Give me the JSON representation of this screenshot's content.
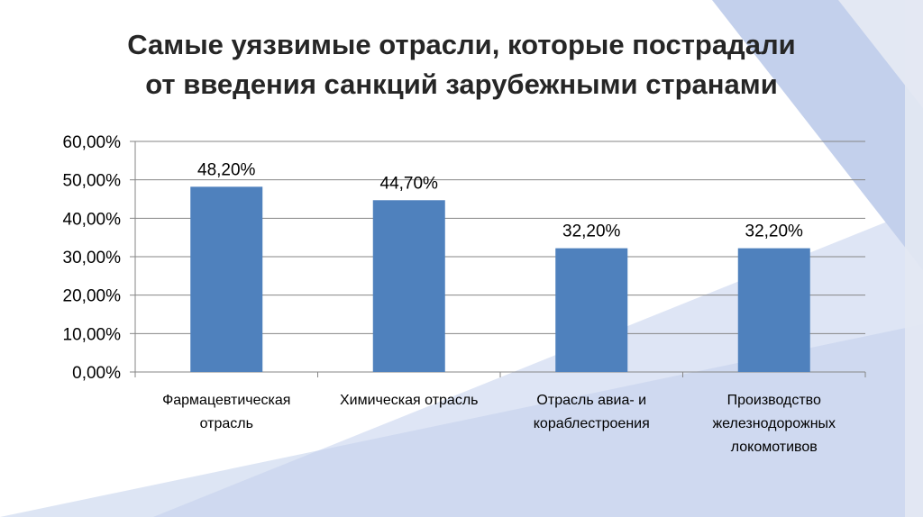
{
  "slide": {
    "title_line1": "Самые уязвимые отрасли, которые пострадали",
    "title_line2": "от введения санкций зарубежными странами"
  },
  "colors": {
    "bar": "#4f81bd",
    "decor_light": "#dde5f4",
    "decor_mid": "#c3d0ec",
    "decor_edge": "#e3e8f3"
  },
  "chart_data": {
    "type": "bar",
    "categories": [
      [
        "Фармацевтическая",
        "отрасль"
      ],
      [
        "Химическая отрасль"
      ],
      [
        "Отрасль авиа- и",
        "кораблестроения"
      ],
      [
        "Производство",
        "железнодорожных",
        "локомотивов"
      ]
    ],
    "values": [
      48.2,
      44.7,
      32.2,
      32.2
    ],
    "data_labels": [
      "48,20%",
      "44,70%",
      "32,20%",
      "32,20%"
    ],
    "y_ticks": [
      "0,00%",
      "10,00%",
      "20,00%",
      "30,00%",
      "40,00%",
      "50,00%",
      "60,00%"
    ],
    "ylim": [
      0,
      60
    ],
    "y_step": 10,
    "grid": true,
    "legend": "none"
  }
}
